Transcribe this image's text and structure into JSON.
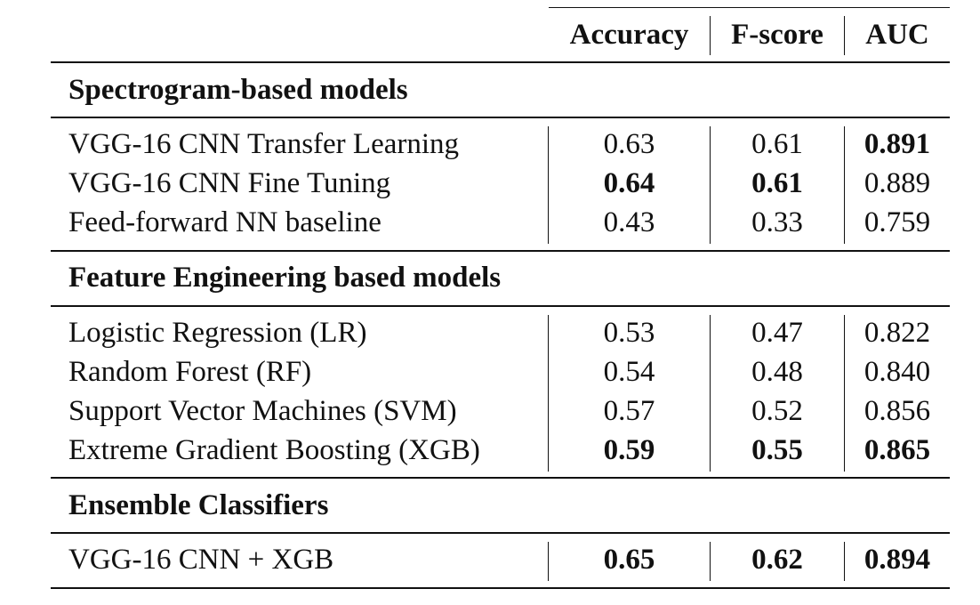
{
  "columns": [
    "Accuracy",
    "F-score",
    "AUC"
  ],
  "groups": [
    {
      "title": "Spectrogram-based models",
      "rows": [
        {
          "model": "VGG-16 CNN Transfer Learning",
          "accuracy": "0.63",
          "fscore": "0.61",
          "auc": "0.891",
          "bold": [
            false,
            false,
            true
          ]
        },
        {
          "model": "VGG-16 CNN Fine Tuning",
          "accuracy": "0.64",
          "fscore": "0.61",
          "auc": "0.889",
          "bold": [
            true,
            true,
            false
          ]
        },
        {
          "model": "Feed-forward NN baseline",
          "accuracy": "0.43",
          "fscore": "0.33",
          "auc": "0.759",
          "bold": [
            false,
            false,
            false
          ]
        }
      ]
    },
    {
      "title": "Feature Engineering based models",
      "rows": [
        {
          "model": "Logistic Regression (LR)",
          "accuracy": "0.53",
          "fscore": "0.47",
          "auc": "0.822",
          "bold": [
            false,
            false,
            false
          ]
        },
        {
          "model": "Random Forest (RF)",
          "accuracy": "0.54",
          "fscore": "0.48",
          "auc": "0.840",
          "bold": [
            false,
            false,
            false
          ]
        },
        {
          "model": "Support Vector Machines (SVM)",
          "accuracy": "0.57",
          "fscore": "0.52",
          "auc": "0.856",
          "bold": [
            false,
            false,
            false
          ]
        },
        {
          "model": "Extreme Gradient Boosting (XGB)",
          "accuracy": "0.59",
          "fscore": "0.55",
          "auc": "0.865",
          "bold": [
            true,
            true,
            true
          ]
        }
      ]
    },
    {
      "title": "Ensemble Classifiers",
      "rows": [
        {
          "model": "VGG-16 CNN + XGB",
          "accuracy": "0.65",
          "fscore": "0.62",
          "auc": "0.894",
          "bold": [
            true,
            true,
            true
          ]
        }
      ]
    }
  ]
}
